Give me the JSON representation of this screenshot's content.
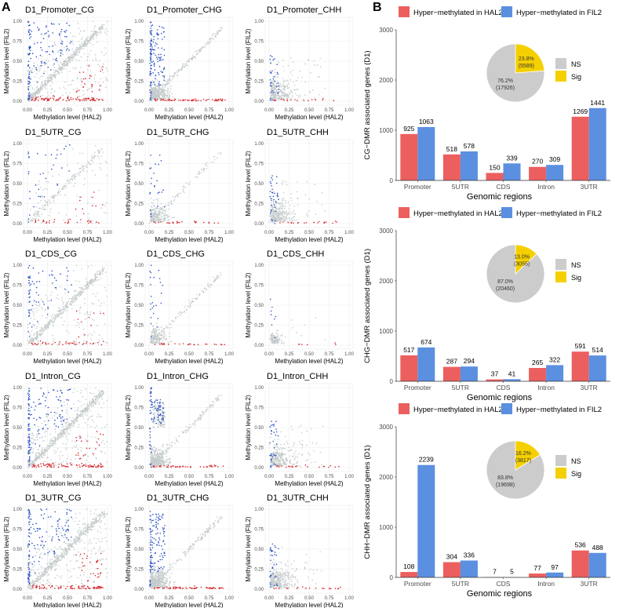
{
  "panel_labels": {
    "a": "A",
    "b": "B"
  },
  "colors": {
    "hal2": "#EC5F5F",
    "fil2": "#5B8FE0",
    "ns": "#CCCCCC",
    "sig": "#F5D000",
    "scatter_gray": "#C5CBCB",
    "scatter_red": "#D8262C",
    "scatter_blue": "#2852C4",
    "grid": "#EBEBEB",
    "axis_text": "#4D4D4D"
  },
  "scatter_axes": {
    "xlabel": "Methylation level (HAL2)",
    "ylabel": "Methylation level (FIL2)",
    "ticks": [
      "0.00",
      "0.25",
      "0.50",
      "0.75",
      "1.00"
    ]
  },
  "chart_data": [
    {
      "type": "scatter",
      "title": "D1_Promoter_CG",
      "xlim": [
        0,
        1
      ],
      "ylim": [
        0,
        1
      ],
      "pattern": "cg_dense",
      "xlabel": "Methylation level (HAL2)",
      "ylabel": "Methylation level (FIL2)",
      "series": [
        {
          "name": "NS",
          "color": "gray"
        },
        {
          "name": "Hyper-methylated in HAL2",
          "color": "red"
        },
        {
          "name": "Hyper-methylated in FIL2",
          "color": "blue"
        }
      ]
    },
    {
      "type": "scatter",
      "title": "D1_Promoter_CHG",
      "xlim": [
        0,
        1
      ],
      "ylim": [
        0,
        1
      ],
      "pattern": "chg_dense",
      "xlabel": "Methylation level (HAL2)",
      "ylabel": "Methylation level (FIL2)",
      "series": [
        {
          "name": "NS",
          "color": "gray"
        },
        {
          "name": "Hyper-methylated in HAL2",
          "color": "red"
        },
        {
          "name": "Hyper-methylated in FIL2",
          "color": "blue"
        }
      ]
    },
    {
      "type": "scatter",
      "title": "D1_Promoter_CHH",
      "xlim": [
        0,
        1
      ],
      "ylim": [
        0,
        1
      ],
      "pattern": "chh",
      "xlabel": "Methylation level (HAL2)",
      "ylabel": "Methylation level (FIL2)",
      "series": [
        {
          "name": "NS",
          "color": "gray"
        },
        {
          "name": "Hyper-methylated in HAL2",
          "color": "red"
        },
        {
          "name": "Hyper-methylated in FIL2",
          "color": "blue"
        }
      ]
    },
    {
      "type": "scatter",
      "title": "D1_5UTR_CG",
      "xlim": [
        0,
        1
      ],
      "ylim": [
        0,
        1
      ],
      "pattern": "cg_sparse",
      "xlabel": "Methylation level (HAL2)",
      "ylabel": "Methylation level (FIL2)",
      "series": [
        {
          "name": "NS",
          "color": "gray"
        },
        {
          "name": "Hyper-methylated in HAL2",
          "color": "red"
        },
        {
          "name": "Hyper-methylated in FIL2",
          "color": "blue"
        }
      ]
    },
    {
      "type": "scatter",
      "title": "D1_5UTR_CHG",
      "xlim": [
        0,
        1
      ],
      "ylim": [
        0,
        1
      ],
      "pattern": "chg_sparse",
      "xlabel": "Methylation level (HAL2)",
      "ylabel": "Methylation level (FIL2)",
      "series": [
        {
          "name": "NS",
          "color": "gray"
        },
        {
          "name": "Hyper-methylated in HAL2",
          "color": "red"
        },
        {
          "name": "Hyper-methylated in FIL2",
          "color": "blue"
        }
      ]
    },
    {
      "type": "scatter",
      "title": "D1_5UTR_CHH",
      "xlim": [
        0,
        1
      ],
      "ylim": [
        0,
        1
      ],
      "pattern": "chh",
      "xlabel": "Methylation level (HAL2)",
      "ylabel": "Methylation level (FIL2)",
      "series": [
        {
          "name": "NS",
          "color": "gray"
        },
        {
          "name": "Hyper-methylated in HAL2",
          "color": "red"
        },
        {
          "name": "Hyper-methylated in FIL2",
          "color": "blue"
        }
      ]
    },
    {
      "type": "scatter",
      "title": "D1_CDS_CG",
      "xlim": [
        0,
        1
      ],
      "ylim": [
        0,
        1
      ],
      "pattern": "cg_cds",
      "xlabel": "Methylation level (HAL2)",
      "ylabel": "Methylation level (FIL2)",
      "series": [
        {
          "name": "NS",
          "color": "gray"
        },
        {
          "name": "Hyper-methylated in HAL2",
          "color": "red"
        },
        {
          "name": "Hyper-methylated in FIL2",
          "color": "blue"
        }
      ]
    },
    {
      "type": "scatter",
      "title": "D1_CDS_CHG",
      "xlim": [
        0,
        1
      ],
      "ylim": [
        0,
        1
      ],
      "pattern": "chg_sparse",
      "xlabel": "Methylation level (HAL2)",
      "ylabel": "Methylation level (FIL2)",
      "series": [
        {
          "name": "NS",
          "color": "gray"
        },
        {
          "name": "Hyper-methylated in HAL2",
          "color": "red"
        },
        {
          "name": "Hyper-methylated in FIL2",
          "color": "blue"
        }
      ]
    },
    {
      "type": "scatter",
      "title": "D1_CDS_CHH",
      "xlim": [
        0,
        1
      ],
      "ylim": [
        0,
        1
      ],
      "pattern": "chh_tiny",
      "xlabel": "Methylation level (HAL2)",
      "ylabel": "Methylation level (FIL2)",
      "series": [
        {
          "name": "NS",
          "color": "gray"
        },
        {
          "name": "Hyper-methylated in HAL2",
          "color": "red"
        },
        {
          "name": "Hyper-methylated in FIL2",
          "color": "blue"
        }
      ]
    },
    {
      "type": "scatter",
      "title": "D1_Intron_CG",
      "xlim": [
        0,
        1
      ],
      "ylim": [
        0,
        1
      ],
      "pattern": "cg_dense",
      "xlabel": "Methylation level (HAL2)",
      "ylabel": "Methylation level (FIL2)",
      "series": [
        {
          "name": "NS",
          "color": "gray"
        },
        {
          "name": "Hyper-methylated in HAL2",
          "color": "red"
        },
        {
          "name": "Hyper-methylated in FIL2",
          "color": "blue"
        }
      ]
    },
    {
      "type": "scatter",
      "title": "D1_Intron_CHG",
      "xlim": [
        0,
        1
      ],
      "ylim": [
        0,
        1
      ],
      "pattern": "chg_intron",
      "xlabel": "Methylation level (HAL2)",
      "ylabel": "Methylation level (FIL2)",
      "series": [
        {
          "name": "NS",
          "color": "gray"
        },
        {
          "name": "Hyper-methylated in HAL2",
          "color": "red"
        },
        {
          "name": "Hyper-methylated in FIL2",
          "color": "blue"
        }
      ]
    },
    {
      "type": "scatter",
      "title": "D1_Intron_CHH",
      "xlim": [
        0,
        1
      ],
      "ylim": [
        0,
        1
      ],
      "pattern": "chh",
      "xlabel": "Methylation level (HAL2)",
      "ylabel": "Methylation level (FIL2)",
      "series": [
        {
          "name": "NS",
          "color": "gray"
        },
        {
          "name": "Hyper-methylated in HAL2",
          "color": "red"
        },
        {
          "name": "Hyper-methylated in FIL2",
          "color": "blue"
        }
      ]
    },
    {
      "type": "scatter",
      "title": "D1_3UTR_CG",
      "xlim": [
        0,
        1
      ],
      "ylim": [
        0,
        1
      ],
      "pattern": "cg_dense",
      "xlabel": "Methylation level (HAL2)",
      "ylabel": "Methylation level (FIL2)",
      "series": [
        {
          "name": "NS",
          "color": "gray"
        },
        {
          "name": "Hyper-methylated in HAL2",
          "color": "red"
        },
        {
          "name": "Hyper-methylated in FIL2",
          "color": "blue"
        }
      ]
    },
    {
      "type": "scatter",
      "title": "D1_3UTR_CHG",
      "xlim": [
        0,
        1
      ],
      "ylim": [
        0,
        1
      ],
      "pattern": "chg_dense",
      "xlabel": "Methylation level (HAL2)",
      "ylabel": "Methylation level (FIL2)",
      "series": [
        {
          "name": "NS",
          "color": "gray"
        },
        {
          "name": "Hyper-methylated in HAL2",
          "color": "red"
        },
        {
          "name": "Hyper-methylated in FIL2",
          "color": "blue"
        }
      ]
    },
    {
      "type": "scatter",
      "title": "D1_3UTR_CHH",
      "xlim": [
        0,
        1
      ],
      "ylim": [
        0,
        1
      ],
      "pattern": "chh",
      "xlabel": "Methylation level (HAL2)",
      "ylabel": "Methylation level (FIL2)",
      "series": [
        {
          "name": "NS",
          "color": "gray"
        },
        {
          "name": "Hyper-methylated in HAL2",
          "color": "red"
        },
        {
          "name": "Hyper-methylated in FIL2",
          "color": "blue"
        }
      ]
    },
    {
      "type": "bar",
      "ylabel": "CG−DMR associated genes (D1)",
      "xlabel": "Genomic regions",
      "categories": [
        "Promoter",
        "5UTR",
        "CDS",
        "Intron",
        "3UTR"
      ],
      "series": [
        {
          "name": "Hyper−methylated in HAL2",
          "values": [
            925,
            518,
            150,
            270,
            1269
          ]
        },
        {
          "name": "Hyper−methylated in FIL2",
          "values": [
            1063,
            578,
            339,
            309,
            1441
          ]
        }
      ],
      "ylim": [
        0,
        3000
      ],
      "yticks": [
        0,
        1000,
        2000,
        3000
      ],
      "pie": {
        "type": "pie",
        "slices": [
          {
            "name": "NS",
            "percent": "76.2%",
            "count": "(17926)",
            "value": 17926
          },
          {
            "name": "Sig",
            "percent": "23.8%",
            "count": "(5589)",
            "value": 5589
          }
        ]
      }
    },
    {
      "type": "bar",
      "ylabel": "CHG−DMR associated genes (D1)",
      "xlabel": "Genomic regions",
      "categories": [
        "Promoter",
        "5UTR",
        "CDS",
        "Intron",
        "3UTR"
      ],
      "series": [
        {
          "name": "Hyper−methylated in HAL2",
          "values": [
            517,
            287,
            37,
            265,
            591
          ]
        },
        {
          "name": "Hyper−methylated in FIL2",
          "values": [
            674,
            294,
            41,
            322,
            514
          ]
        }
      ],
      "ylim": [
        0,
        3000
      ],
      "yticks": [
        0,
        1000,
        2000,
        3000
      ],
      "pie": {
        "type": "pie",
        "slices": [
          {
            "name": "NS",
            "percent": "87.0%",
            "count": "(20460)",
            "value": 20460
          },
          {
            "name": "Sig",
            "percent": "13.0%",
            "count": "(3055)",
            "value": 3055
          }
        ]
      }
    },
    {
      "type": "bar",
      "ylabel": "CHH−DMR associated genes (D1)",
      "xlabel": "Genomic regions",
      "categories": [
        "Promoter",
        "5UTR",
        "CDS",
        "Intron",
        "3UTR"
      ],
      "series": [
        {
          "name": "Hyper−methylated in HAL2",
          "values": [
            108,
            304,
            7,
            77,
            536
          ]
        },
        {
          "name": "Hyper−methylated in FIL2",
          "values": [
            2239,
            336,
            5,
            97,
            488
          ]
        }
      ],
      "ylim": [
        0,
        3000
      ],
      "yticks": [
        0,
        1000,
        2000,
        3000
      ],
      "pie": {
        "type": "pie",
        "slices": [
          {
            "name": "NS",
            "percent": "83.8%",
            "count": "(19698)",
            "value": 19698
          },
          {
            "name": "Sig",
            "percent": "16.2%",
            "count": "(3817)",
            "value": 3817
          }
        ]
      }
    }
  ]
}
